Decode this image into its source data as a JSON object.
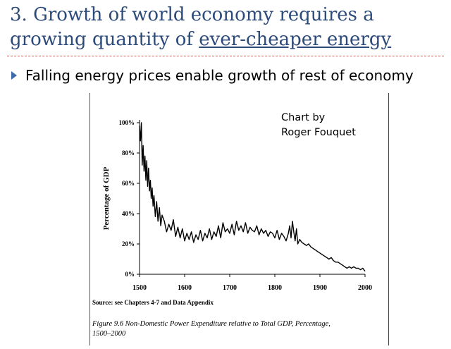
{
  "slide": {
    "title_line1": "3. Growth of world economy requires a",
    "title_line2_prefix": "growing quantity of ",
    "title_line2_underlined": "ever-cheaper energy",
    "bullet": "Falling energy prices enable growth of rest of economy",
    "colors": {
      "title": "#2c4a7a",
      "bullet_arrow": "#3d6aa8",
      "rule": "#d05050"
    }
  },
  "credit": {
    "line1": "Chart by",
    "line2": "Roger Fouquet"
  },
  "source_note": "Source: see Chapters 4-7 and Data Appendix",
  "caption_line1": "Figure 9.6 Non-Domestic Power Expenditure relative to Total GDP, Percentage,",
  "caption_line2": "1500–2000",
  "chart_data": {
    "type": "line",
    "title": "",
    "xlabel": "",
    "ylabel": "Percentage of GDP",
    "xlim": [
      1500,
      2000
    ],
    "ylim": [
      0,
      100
    ],
    "x_ticks": [
      1500,
      1600,
      1700,
      1800,
      1900,
      2000
    ],
    "x_tick_labels": [
      "1500",
      "1600",
      "1700",
      "1800",
      "1900",
      "2000"
    ],
    "y_ticks": [
      0,
      20,
      40,
      60,
      80,
      100
    ],
    "y_tick_labels": [
      "0%",
      "20%",
      "40%",
      "60%",
      "80%",
      "100%"
    ],
    "grid": false,
    "series": [
      {
        "x": [
          1500,
          1502,
          1504,
          1506,
          1508,
          1510,
          1512,
          1514,
          1516,
          1518,
          1520,
          1522,
          1524,
          1526,
          1528,
          1530,
          1532,
          1535,
          1538,
          1541,
          1544,
          1547,
          1550,
          1555,
          1560,
          1565,
          1570,
          1575,
          1580,
          1585,
          1590,
          1595,
          1600,
          1605,
          1610,
          1615,
          1620,
          1625,
          1630,
          1635,
          1640,
          1645,
          1650,
          1655,
          1660,
          1665,
          1670,
          1675,
          1680,
          1685,
          1690,
          1695,
          1700,
          1705,
          1710,
          1715,
          1720,
          1725,
          1730,
          1735,
          1740,
          1745,
          1750,
          1755,
          1760,
          1765,
          1770,
          1775,
          1780,
          1785,
          1790,
          1795,
          1800,
          1805,
          1810,
          1815,
          1820,
          1825,
          1830,
          1833,
          1836,
          1839,
          1842,
          1845,
          1848,
          1851,
          1855,
          1860,
          1865,
          1870,
          1875,
          1880,
          1885,
          1890,
          1895,
          1900,
          1905,
          1910,
          1915,
          1920,
          1925,
          1930,
          1935,
          1940,
          1945,
          1950,
          1955,
          1960,
          1965,
          1970,
          1975,
          1980,
          1985,
          1990,
          1995,
          2000
        ],
        "values": [
          98,
          88,
          100,
          72,
          85,
          68,
          78,
          62,
          75,
          58,
          70,
          55,
          62,
          50,
          57,
          45,
          52,
          38,
          48,
          35,
          44,
          32,
          39,
          35,
          28,
          33,
          29,
          36,
          25,
          31,
          24,
          30,
          22,
          27,
          23,
          28,
          21,
          26,
          23,
          29,
          22,
          27,
          24,
          30,
          23,
          28,
          25,
          32,
          24,
          34,
          28,
          30,
          27,
          33,
          26,
          35,
          29,
          32,
          28,
          34,
          27,
          31,
          29,
          28,
          32,
          26,
          30,
          27,
          29,
          25,
          28,
          27,
          24,
          29,
          23,
          27,
          25,
          22,
          27,
          32,
          24,
          35,
          28,
          22,
          30,
          20,
          23,
          21,
          20,
          19,
          20,
          18,
          17,
          16,
          15,
          14,
          13,
          12,
          11,
          10,
          11,
          9,
          8,
          8,
          7,
          6,
          5,
          4,
          5,
          4,
          5,
          4,
          4,
          3,
          4,
          2
        ]
      }
    ]
  }
}
